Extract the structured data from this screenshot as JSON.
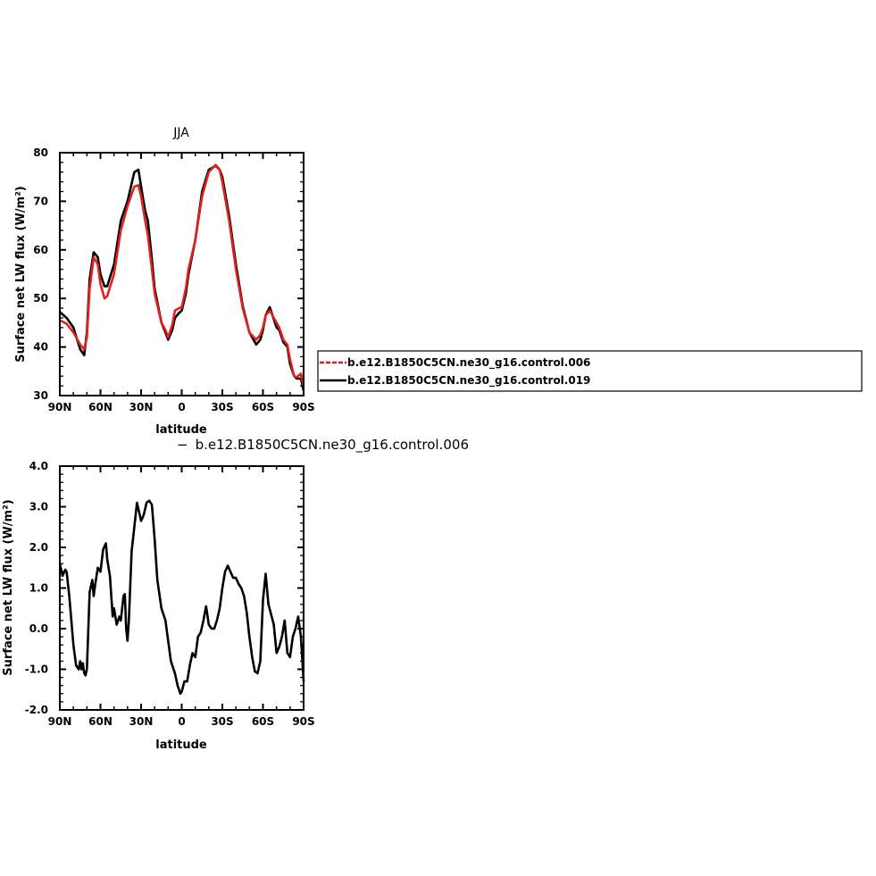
{
  "chart_data": [
    {
      "type": "line",
      "title": "JJA",
      "xlabel": "latitude",
      "ylabel": "Surface net LW flux (W/m²)",
      "x_tick_labels": [
        "90N",
        "60N",
        "30N",
        "0",
        "30S",
        "60S",
        "90S"
      ],
      "xlim": [
        90,
        -90
      ],
      "ylim": [
        30,
        80
      ],
      "y_ticks": [
        30,
        40,
        50,
        60,
        70,
        80
      ],
      "y_tick_labels": [
        "30",
        "40",
        "50",
        "60",
        "70",
        "80"
      ],
      "x": [
        90,
        85,
        80,
        75,
        72,
        70,
        68,
        65,
        62,
        60,
        57,
        55,
        50,
        45,
        40,
        35,
        32,
        30,
        27,
        25,
        22,
        20,
        15,
        12,
        10,
        7,
        5,
        2,
        0,
        -3,
        -5,
        -10,
        -15,
        -20,
        -25,
        -28,
        -30,
        -35,
        -40,
        -45,
        -50,
        -55,
        -58,
        -60,
        -62,
        -65,
        -70,
        -72,
        -75,
        -78,
        -80,
        -83,
        -85,
        -88,
        -90
      ],
      "series": [
        {
          "name": "b.e12.B1850C5CN.ne30_g16.control.006",
          "color": "#e0211d",
          "values": [
            45.5,
            44.8,
            43,
            40.5,
            39.5,
            42,
            52,
            58.5,
            57,
            53,
            50,
            50.5,
            55,
            64,
            69,
            73,
            73.3,
            71,
            66,
            63,
            56,
            51,
            45,
            43.5,
            42,
            44.5,
            47.5,
            48,
            48.2,
            52,
            56,
            62,
            71,
            76,
            77.5,
            76.5,
            74,
            66,
            56,
            48,
            43,
            41.5,
            42.5,
            44,
            46.5,
            47.5,
            45,
            44,
            41.5,
            40.5,
            37.5,
            34,
            33.8,
            34.5,
            32
          ]
        },
        {
          "name": "b.e12.B1850C5CN.ne30_g16.control.019",
          "color": "#000000",
          "values": [
            47.2,
            46,
            44,
            39.5,
            38.3,
            43,
            54,
            59.5,
            58.5,
            55,
            52.5,
            52.5,
            57,
            66,
            70,
            76,
            76.5,
            73,
            68,
            66,
            58,
            52,
            45,
            43,
            41.5,
            43.5,
            46,
            47,
            47.5,
            51,
            55,
            62,
            72,
            76.5,
            77.3,
            76.5,
            75,
            67,
            57,
            48.5,
            43,
            40.5,
            41.5,
            43.5,
            46.5,
            48.2,
            44,
            43.5,
            41,
            40,
            36.5,
            34,
            33.5,
            33.5,
            31
          ]
        }
      ]
    },
    {
      "type": "line",
      "title": "b.e12.B1850C5CN.ne30_g16.control.006",
      "title_prefix": "−",
      "xlabel": "latitude",
      "ylabel": "Surface net LW flux (W/m²)",
      "x_tick_labels": [
        "90N",
        "60N",
        "30N",
        "0",
        "30S",
        "60S",
        "90S"
      ],
      "xlim": [
        90,
        -90
      ],
      "ylim": [
        -2,
        4
      ],
      "y_ticks": [
        -2,
        -1,
        0,
        1,
        2,
        3,
        4
      ],
      "y_tick_labels": [
        "-2.0",
        "-1.0",
        "0.0",
        "1.0",
        "2.0",
        "3.0",
        "4.0"
      ],
      "x": [
        90,
        88,
        86,
        85,
        83,
        80,
        78,
        76,
        75,
        74,
        73,
        72,
        71,
        70,
        68,
        66,
        65,
        64,
        62,
        60,
        58,
        56,
        55,
        53,
        51,
        50,
        48,
        46,
        45,
        43,
        42,
        41,
        40,
        39,
        37,
        35,
        33,
        31,
        30,
        28,
        26,
        24,
        22,
        20,
        18,
        15,
        12,
        10,
        8,
        5,
        3,
        1,
        0,
        -2,
        -4,
        -6,
        -8,
        -10,
        -12,
        -14,
        -16,
        -18,
        -20,
        -22,
        -24,
        -26,
        -28,
        -30,
        -32,
        -34,
        -36,
        -38,
        -40,
        -42,
        -44,
        -46,
        -48,
        -50,
        -52,
        -54,
        -56,
        -58,
        -60,
        -62,
        -64,
        -66,
        -68,
        -70,
        -72,
        -74,
        -76,
        -78,
        -80,
        -82,
        -84,
        -86,
        -88,
        -90
      ],
      "series": [
        {
          "name": "b.e12.B1850C5CN.ne30_g16.control.006",
          "color": "#000000",
          "values": [
            1.6,
            1.3,
            1.45,
            1.4,
            0.8,
            -0.4,
            -0.9,
            -1.0,
            -0.8,
            -1.0,
            -0.85,
            -1.1,
            -1.15,
            -1.0,
            0.9,
            1.2,
            0.8,
            1.05,
            1.5,
            1.4,
            1.95,
            2.1,
            1.7,
            1.3,
            0.3,
            0.5,
            0.1,
            0.3,
            0.2,
            0.8,
            0.85,
            0.0,
            -0.3,
            0.2,
            1.9,
            2.5,
            3.1,
            2.8,
            2.65,
            2.8,
            3.1,
            3.15,
            3.05,
            2.2,
            1.2,
            0.5,
            0.2,
            -0.3,
            -0.8,
            -1.1,
            -1.4,
            -1.6,
            -1.55,
            -1.3,
            -1.3,
            -0.9,
            -0.6,
            -0.7,
            -0.2,
            -0.1,
            0.2,
            0.55,
            0.1,
            0.0,
            0.0,
            0.2,
            0.5,
            1.0,
            1.4,
            1.55,
            1.4,
            1.25,
            1.25,
            1.1,
            1.0,
            0.8,
            0.4,
            -0.2,
            -0.7,
            -1.05,
            -1.1,
            -0.8,
            0.7,
            1.35,
            0.6,
            0.35,
            0.1,
            -0.6,
            -0.45,
            -0.2,
            0.2,
            -0.6,
            -0.7,
            -0.2,
            0.0,
            0.3,
            -0.2,
            -1.3
          ]
        }
      ]
    }
  ],
  "legend": [
    {
      "label": "b.e12.B1850C5CN.ne30_g16.control.006",
      "color": "#e0211d",
      "dashed": true
    },
    {
      "label": "b.e12.B1850C5CN.ne30_g16.control.019",
      "color": "#000000",
      "dashed": false
    }
  ]
}
